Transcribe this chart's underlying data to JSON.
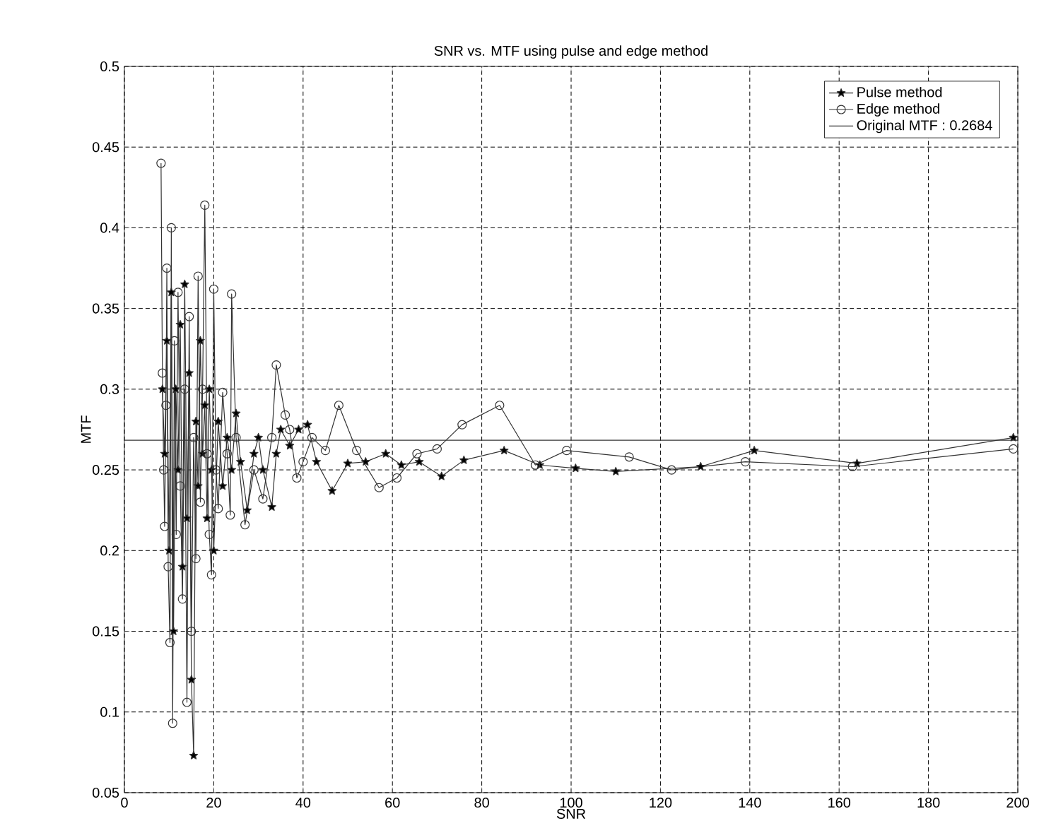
{
  "chart_data": {
    "type": "line",
    "title": "SNR vs. MTF using pulse and edge method",
    "xlabel": "SNR",
    "ylabel": "MTF",
    "xlim": [
      0,
      200
    ],
    "xticks": [
      0,
      20,
      40,
      60,
      80,
      100,
      120,
      140,
      160,
      180,
      200
    ],
    "ylim": [
      0.05,
      0.5
    ],
    "yticks": [
      0.05,
      0.1,
      0.15,
      0.2,
      0.25,
      0.3,
      0.35,
      0.4,
      0.45,
      0.5
    ],
    "grid": true,
    "legend": "top right",
    "line_style": "solid",
    "series": [
      {
        "name": "Pulse method",
        "color": "#333333",
        "marker": "star",
        "x": [
          8.5,
          9,
          9.5,
          10,
          10.5,
          11,
          11.5,
          12,
          12.5,
          13,
          13.5,
          14,
          14.5,
          15,
          15.5,
          16,
          16.5,
          17,
          17.5,
          18,
          18.5,
          19,
          19.5,
          20,
          21,
          22,
          23,
          24,
          25,
          26,
          27.5,
          29,
          30,
          31,
          33,
          34,
          35,
          37,
          39,
          41,
          43,
          46.5,
          50,
          54,
          58.5,
          62,
          66,
          71,
          76,
          85,
          93,
          101,
          110,
          129,
          141,
          164,
          199
        ],
        "values": [
          0.3,
          0.26,
          0.33,
          0.2,
          0.36,
          0.15,
          0.3,
          0.25,
          0.34,
          0.19,
          0.365,
          0.22,
          0.31,
          0.12,
          0.073,
          0.28,
          0.24,
          0.33,
          0.26,
          0.29,
          0.22,
          0.3,
          0.25,
          0.2,
          0.28,
          0.24,
          0.27,
          0.25,
          0.285,
          0.255,
          0.225,
          0.26,
          0.27,
          0.25,
          0.227,
          0.26,
          0.275,
          0.265,
          0.275,
          0.278,
          0.255,
          0.237,
          0.254,
          0.255,
          0.26,
          0.253,
          0.255,
          0.246,
          0.256,
          0.262,
          0.253,
          0.251,
          0.249,
          0.252,
          0.262,
          0.254,
          0.27
        ]
      },
      {
        "name": "Edge method",
        "color": "#333333",
        "marker": "circle",
        "x": [
          8.2,
          8.5,
          8.8,
          9,
          9.3,
          9.5,
          9.8,
          10.2,
          10.5,
          10.8,
          11.2,
          11.6,
          12,
          12.5,
          13,
          13.5,
          14,
          14.5,
          15,
          15.5,
          16,
          16.5,
          17,
          17.5,
          18,
          18.5,
          19,
          19.5,
          20,
          20.5,
          21,
          22,
          23,
          23.7,
          24,
          25,
          27,
          29,
          31,
          33,
          34,
          36,
          37,
          38.6,
          40,
          42,
          45,
          48,
          52,
          57,
          61,
          65.5,
          70,
          75.6,
          84,
          92,
          99,
          113,
          122.5,
          139,
          163,
          199
        ],
        "values": [
          0.44,
          0.31,
          0.25,
          0.215,
          0.29,
          0.375,
          0.19,
          0.143,
          0.4,
          0.093,
          0.33,
          0.21,
          0.36,
          0.24,
          0.17,
          0.3,
          0.106,
          0.345,
          0.15,
          0.27,
          0.195,
          0.37,
          0.23,
          0.3,
          0.414,
          0.26,
          0.21,
          0.185,
          0.362,
          0.25,
          0.226,
          0.298,
          0.26,
          0.222,
          0.359,
          0.27,
          0.216,
          0.25,
          0.232,
          0.27,
          0.315,
          0.284,
          0.275,
          0.245,
          0.255,
          0.27,
          0.262,
          0.29,
          0.262,
          0.239,
          0.245,
          0.26,
          0.263,
          0.278,
          0.29,
          0.253,
          0.262,
          0.258,
          0.25,
          0.255,
          0.252,
          0.263
        ]
      },
      {
        "name": "Original MTF : 0.2684",
        "color": "#333333",
        "marker": "none",
        "x": [
          0,
          200
        ],
        "values": [
          0.2684,
          0.2684
        ]
      }
    ]
  }
}
